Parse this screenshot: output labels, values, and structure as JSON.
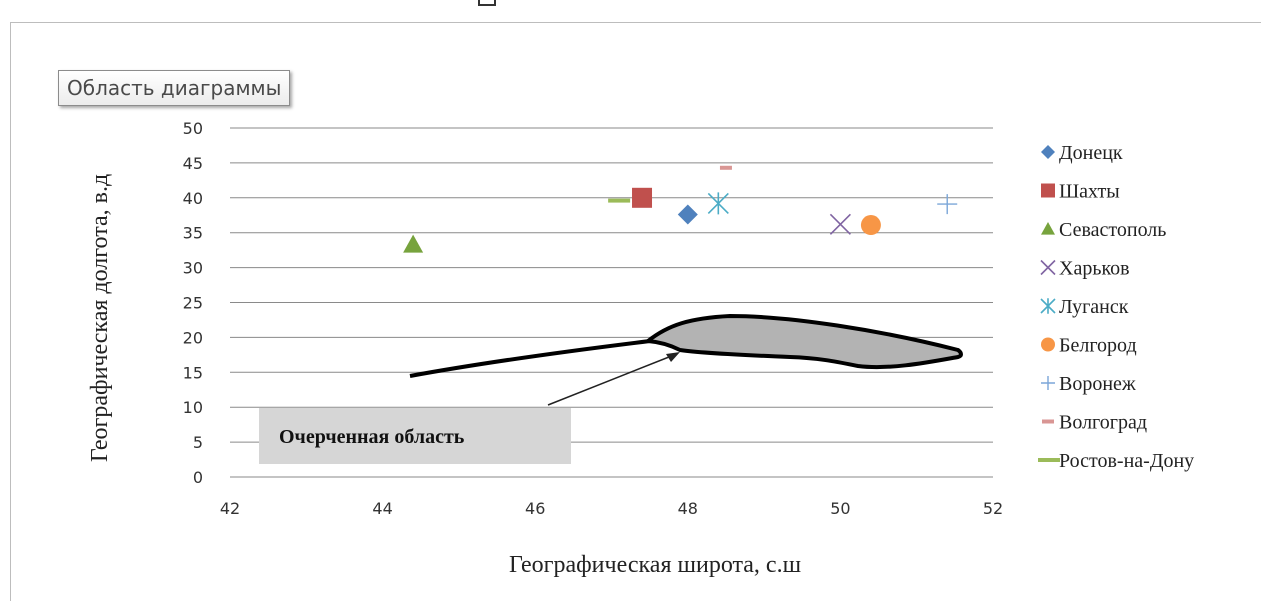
{
  "tooltip": "Область диаграммы",
  "colors": {
    "donetsk": "#4f81bd",
    "shakhty": "#c0504d",
    "sevastopol": "#77a33d",
    "kharkov": "#8064a2",
    "lugansk": "#4bacc6",
    "belgorod": "#f79646",
    "voronezh": "#7ba6d8",
    "volgograd": "#d99694",
    "rostov": "#9bbb59"
  },
  "chart_data": {
    "type": "scatter",
    "title": "",
    "xlabel": "Географическая широта, с.ш",
    "ylabel": "Географическая долгота, в.д",
    "xlim": [
      42,
      52
    ],
    "ylim": [
      0,
      50
    ],
    "xticks": [
      "42",
      "44",
      "46",
      "48",
      "50",
      "52"
    ],
    "yticks": [
      "0",
      "5",
      "10",
      "15",
      "20",
      "25",
      "30",
      "35",
      "40",
      "45",
      "50"
    ],
    "grid": "horizontal",
    "legend_position": "right",
    "series": [
      {
        "name": "Донецк",
        "marker": "diamond",
        "color": "#4f81bd",
        "x": 48.0,
        "y": 37.6
      },
      {
        "name": "Шахты",
        "marker": "square",
        "color": "#c0504d",
        "x": 47.4,
        "y": 40.0
      },
      {
        "name": "Севастополь",
        "marker": "triangle",
        "color": "#77a33d",
        "x": 44.4,
        "y": 33.3
      },
      {
        "name": "Харьков",
        "marker": "x",
        "color": "#8064a2",
        "x": 50.0,
        "y": 36.2
      },
      {
        "name": "Луганск",
        "marker": "star",
        "color": "#4bacc6",
        "x": 48.4,
        "y": 39.2
      },
      {
        "name": "Белгород",
        "marker": "circle",
        "color": "#f79646",
        "x": 50.4,
        "y": 36.1
      },
      {
        "name": "Воронеж",
        "marker": "plus",
        "color": "#7ba6d8",
        "x": 51.4,
        "y": 39.1
      },
      {
        "name": "Волгоград",
        "marker": "dash",
        "color": "#d99694",
        "x": 48.5,
        "y": 44.3
      },
      {
        "name": "Ростов-на-Дону",
        "marker": "longdash",
        "color": "#9bbb59",
        "x": 47.1,
        "y": 39.6
      }
    ],
    "annotation": "Очерченная область"
  }
}
